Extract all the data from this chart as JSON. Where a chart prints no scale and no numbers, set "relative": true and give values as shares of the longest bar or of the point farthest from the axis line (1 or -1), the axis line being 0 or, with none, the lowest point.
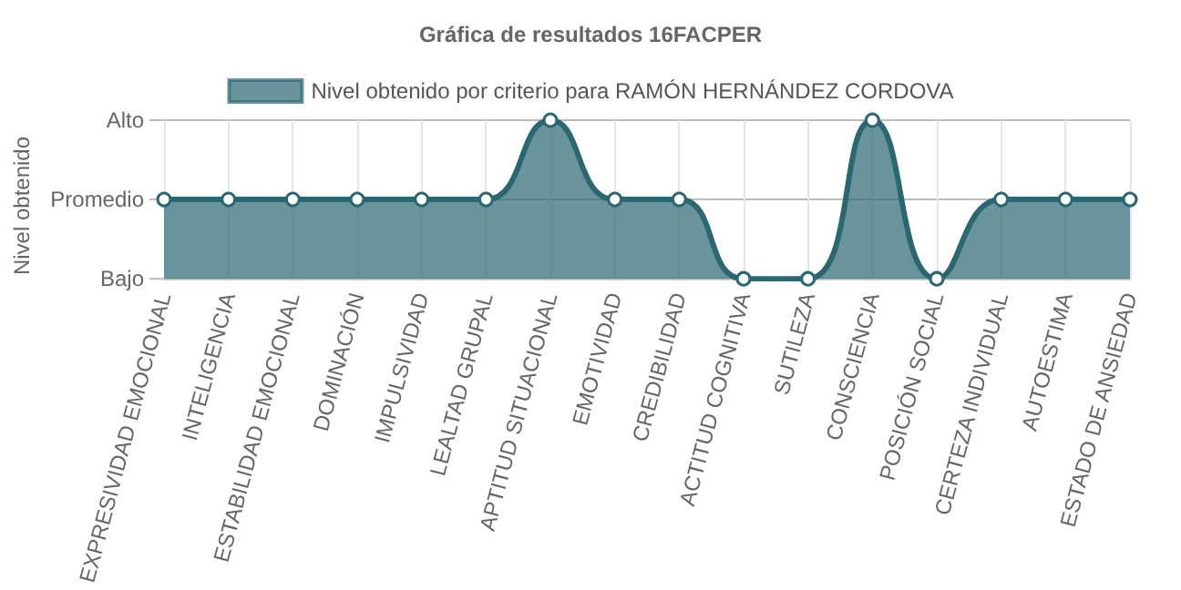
{
  "chart_data": {
    "type": "area",
    "title": "Gráfica de resultados 16FACPER",
    "ylabel": "Nivel obtenido",
    "relative": true,
    "categories": [
      "EXPRESIVIDAD EMOCIONAL",
      "INTELIGENCIA",
      "ESTABILIDAD EMOCIONAL",
      "DOMINACIÓN",
      "IMPULSIVIDAD",
      "LEALTAD GRUPAL",
      "APTITUD SITUACIONAL",
      "EMOTIVIDAD",
      "CREDIBILIDAD",
      "ACTITUD COGNITIVA",
      "SUTILEZA",
      "CONSCIENCIA",
      "POSICIÓN SOCIAL",
      "CERTEZA INDIVIDUAL",
      "AUTOESTIMA",
      "ESTADO DE ANSIEDAD"
    ],
    "series": [
      {
        "name": "Nivel obtenido por criterio para RAMÓN HERNÁNDEZ CORDOVA",
        "color": "#2b6770",
        "values": [
          0.5,
          0.5,
          0.5,
          0.5,
          0.5,
          0.5,
          1,
          0.5,
          0.5,
          0,
          0,
          1,
          0,
          0.5,
          0.5,
          0.5
        ]
      }
    ],
    "ref_lines": [
      {
        "axis": "y",
        "value": 0,
        "label": "Bajo"
      },
      {
        "axis": "y",
        "value": 0.5,
        "label": "Promedio"
      },
      {
        "axis": "y",
        "value": 1,
        "label": "Alto"
      }
    ],
    "grid": "x",
    "legend": "top",
    "marker": "circle",
    "line_style": "solid"
  }
}
